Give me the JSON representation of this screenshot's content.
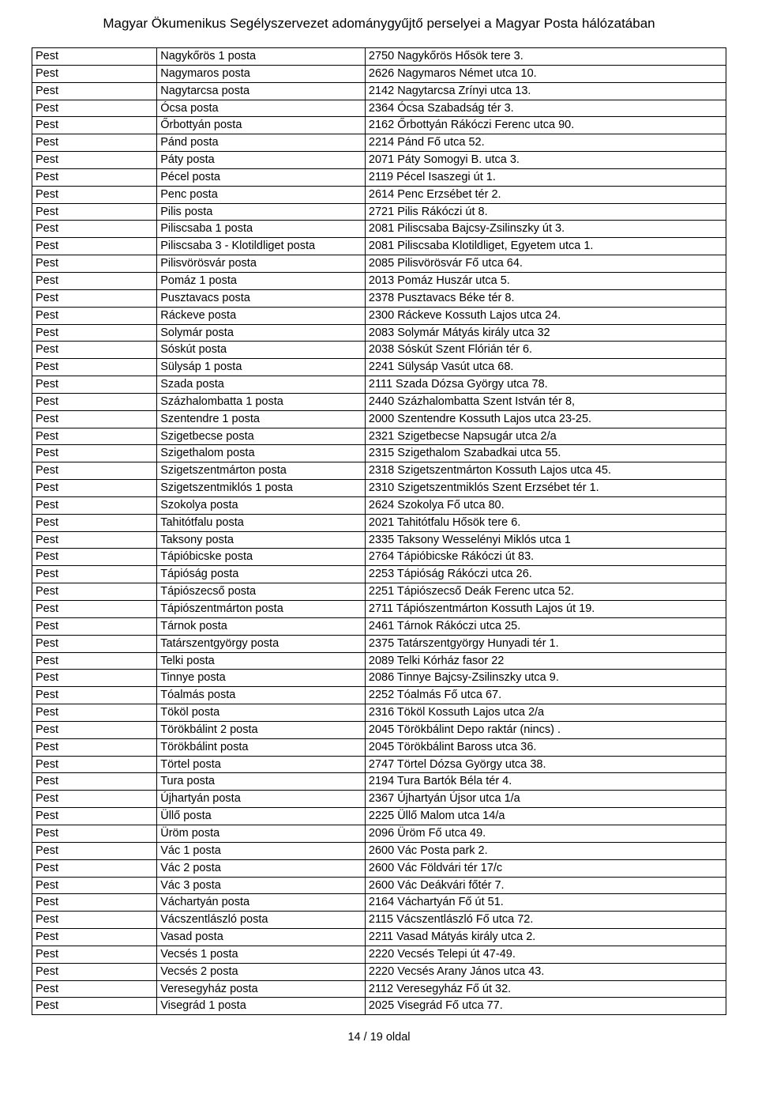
{
  "title": "Magyar Ökumenikus Segélyszervezet adománygyűjtő perselyei a Magyar Posta hálózatában",
  "footer": "14 / 19 oldal",
  "rows": [
    {
      "c1": "Pest",
      "c2": "Nagykőrös 1 posta",
      "c3": "2750 Nagykőrös Hősök tere 3."
    },
    {
      "c1": "Pest",
      "c2": "Nagymaros posta",
      "c3": "2626 Nagymaros Német utca 10."
    },
    {
      "c1": "Pest",
      "c2": "Nagytarcsa posta",
      "c3": "2142 Nagytarcsa Zrínyi utca 13."
    },
    {
      "c1": "Pest",
      "c2": "Ócsa posta",
      "c3": "2364 Ócsa Szabadság tér 3."
    },
    {
      "c1": "Pest",
      "c2": "Őrbottyán posta",
      "c3": "2162 Őrbottyán Rákóczi Ferenc utca 90."
    },
    {
      "c1": "Pest",
      "c2": "Pánd posta",
      "c3": "2214 Pánd Fő utca 52."
    },
    {
      "c1": "Pest",
      "c2": "Páty posta",
      "c3": "2071 Páty Somogyi B. utca 3."
    },
    {
      "c1": "Pest",
      "c2": "Pécel posta",
      "c3": "2119 Pécel Isaszegi út 1."
    },
    {
      "c1": "Pest",
      "c2": "Penc posta",
      "c3": "2614 Penc Erzsébet tér 2."
    },
    {
      "c1": "Pest",
      "c2": "Pilis posta",
      "c3": "2721 Pilis Rákóczi út 8."
    },
    {
      "c1": "Pest",
      "c2": "Piliscsaba 1 posta",
      "c3": "2081 Piliscsaba Bajcsy-Zsilinszky út 3."
    },
    {
      "c1": "Pest",
      "c2": "Piliscsaba 3 - Klotildliget posta",
      "c3": "2081 Piliscsaba Klotildliget, Egyetem utca 1."
    },
    {
      "c1": "Pest",
      "c2": "Pilisvörösvár posta",
      "c3": "2085 Pilisvörösvár Fő utca 64."
    },
    {
      "c1": "Pest",
      "c2": "Pomáz 1 posta",
      "c3": "2013 Pomáz Huszár utca 5."
    },
    {
      "c1": "Pest",
      "c2": "Pusztavacs posta",
      "c3": "2378 Pusztavacs Béke tér 8."
    },
    {
      "c1": "Pest",
      "c2": "Ráckeve posta",
      "c3": "2300 Ráckeve Kossuth Lajos utca 24."
    },
    {
      "c1": "Pest",
      "c2": "Solymár posta",
      "c3": "2083 Solymár Mátyás király utca 32"
    },
    {
      "c1": "Pest",
      "c2": "Sóskút posta",
      "c3": "2038 Sóskút Szent Flórián tér 6."
    },
    {
      "c1": "Pest",
      "c2": "Sülysáp 1 posta",
      "c3": "2241 Sülysáp Vasút utca 68."
    },
    {
      "c1": "Pest",
      "c2": "Szada posta",
      "c3": "2111 Szada Dózsa György utca 78."
    },
    {
      "c1": "Pest",
      "c2": "Százhalombatta 1 posta",
      "c3": "2440 Százhalombatta Szent István tér 8,"
    },
    {
      "c1": "Pest",
      "c2": "Szentendre 1 posta",
      "c3": "2000 Szentendre Kossuth Lajos utca 23-25."
    },
    {
      "c1": "Pest",
      "c2": "Szigetbecse posta",
      "c3": "2321 Szigetbecse Napsugár utca 2/a"
    },
    {
      "c1": "Pest",
      "c2": "Szigethalom posta",
      "c3": "2315 Szigethalom Szabadkai utca 55."
    },
    {
      "c1": "Pest",
      "c2": "Szigetszentmárton posta",
      "c3": "2318 Szigetszentmárton Kossuth Lajos utca 45."
    },
    {
      "c1": "Pest",
      "c2": "Szigetszentmiklós 1 posta",
      "c3": "2310 Szigetszentmiklós Szent Erzsébet tér 1."
    },
    {
      "c1": "Pest",
      "c2": "Szokolya posta",
      "c3": "2624 Szokolya Fő utca 80."
    },
    {
      "c1": "Pest",
      "c2": "Tahitótfalu posta",
      "c3": "2021 Tahitótfalu Hősök tere 6."
    },
    {
      "c1": "Pest",
      "c2": "Taksony posta",
      "c3": "2335 Taksony Wesselényi Miklós utca 1"
    },
    {
      "c1": "Pest",
      "c2": "Tápióbicske posta",
      "c3": "2764 Tápióbicske Rákóczi út 83."
    },
    {
      "c1": "Pest",
      "c2": "Tápióság posta",
      "c3": "2253 Tápióság Rákóczi utca 26."
    },
    {
      "c1": "Pest",
      "c2": "Tápiószecső posta",
      "c3": "2251 Tápiószecső Deák Ferenc utca 52."
    },
    {
      "c1": "Pest",
      "c2": "Tápiószentmárton posta",
      "c3": "2711 Tápiószentmárton Kossuth Lajos út 19."
    },
    {
      "c1": "Pest",
      "c2": "Tárnok posta",
      "c3": "2461 Tárnok Rákóczi utca 25."
    },
    {
      "c1": "Pest",
      "c2": "Tatárszentgyörgy posta",
      "c3": "2375 Tatárszentgyörgy Hunyadi tér 1."
    },
    {
      "c1": "Pest",
      "c2": "Telki posta",
      "c3": "2089 Telki Kórház fasor 22"
    },
    {
      "c1": "Pest",
      "c2": "Tinnye posta",
      "c3": "2086 Tinnye Bajcsy-Zsilinszky utca 9."
    },
    {
      "c1": "Pest",
      "c2": "Tóalmás posta",
      "c3": "2252 Tóalmás Fő utca 67."
    },
    {
      "c1": "Pest",
      "c2": "Tököl posta",
      "c3": "2316 Tököl Kossuth Lajos utca 2/a"
    },
    {
      "c1": "Pest",
      "c2": "Törökbálint 2 posta",
      "c3": "2045 Törökbálint Depo raktár (nincs) ."
    },
    {
      "c1": "Pest",
      "c2": "Törökbálint posta",
      "c3": "2045 Törökbálint Baross utca 36."
    },
    {
      "c1": "Pest",
      "c2": "Törtel posta",
      "c3": "2747 Törtel Dózsa György utca 38."
    },
    {
      "c1": "Pest",
      "c2": "Tura posta",
      "c3": "2194 Tura Bartók Béla tér 4."
    },
    {
      "c1": "Pest",
      "c2": "Újhartyán posta",
      "c3": "2367 Újhartyán Újsor utca 1/a"
    },
    {
      "c1": "Pest",
      "c2": "Üllő posta",
      "c3": "2225 Üllő Malom utca 14/a"
    },
    {
      "c1": "Pest",
      "c2": "Üröm posta",
      "c3": "2096 Üröm Fő utca 49."
    },
    {
      "c1": "Pest",
      "c2": "Vác 1 posta",
      "c3": "2600 Vác Posta park 2."
    },
    {
      "c1": "Pest",
      "c2": "Vác 2 posta",
      "c3": "2600 Vác Földvári tér 17/c"
    },
    {
      "c1": "Pest",
      "c2": "Vác 3 posta",
      "c3": "2600 Vác Deákvári főtér 7."
    },
    {
      "c1": "Pest",
      "c2": "Váchartyán posta",
      "c3": "2164 Váchartyán Fő út 51."
    },
    {
      "c1": "Pest",
      "c2": "Vácszentlászló posta",
      "c3": "2115 Vácszentlászló Fő utca 72."
    },
    {
      "c1": "Pest",
      "c2": "Vasad posta",
      "c3": "2211 Vasad Mátyás király utca 2."
    },
    {
      "c1": "Pest",
      "c2": "Vecsés 1 posta",
      "c3": "2220 Vecsés Telepi út 47-49."
    },
    {
      "c1": "Pest",
      "c2": "Vecsés 2 posta",
      "c3": "2220 Vecsés Arany János utca 43."
    },
    {
      "c1": "Pest",
      "c2": "Veresegyház posta",
      "c3": "2112 Veresegyház Fő út 32."
    },
    {
      "c1": "Pest",
      "c2": "Visegrád 1 posta",
      "c3": "2025 Visegrád Fő utca 77."
    }
  ]
}
